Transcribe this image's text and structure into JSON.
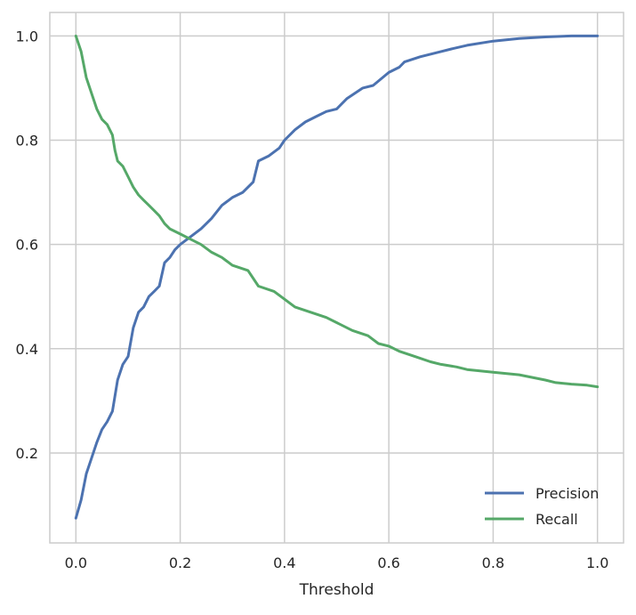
{
  "chart_data": {
    "type": "line",
    "title": "",
    "xlabel": "Threshold",
    "ylabel": "",
    "xlim": [
      -0.05,
      1.05
    ],
    "ylim": [
      0.0275,
      1.045
    ],
    "xticks": [
      0.0,
      0.2,
      0.4,
      0.6,
      0.8,
      1.0
    ],
    "xtick_labels": [
      "0.0",
      "0.2",
      "0.4",
      "0.6",
      "0.8",
      "1.0"
    ],
    "yticks": [
      0.2,
      0.4,
      0.6,
      0.8,
      1.0
    ],
    "ytick_labels": [
      "0.2",
      "0.4",
      "0.6",
      "0.8",
      "1.0"
    ],
    "grid": true,
    "legend_position": "lower-right",
    "colors": {
      "grid": "#cccccc",
      "axes_edge": "#cccccc"
    },
    "series": [
      {
        "name": "Precision",
        "color": "#4c72b0",
        "x": [
          0.0,
          0.01,
          0.02,
          0.03,
          0.04,
          0.05,
          0.06,
          0.07,
          0.08,
          0.09,
          0.1,
          0.11,
          0.12,
          0.13,
          0.14,
          0.15,
          0.16,
          0.17,
          0.18,
          0.19,
          0.2,
          0.22,
          0.24,
          0.26,
          0.28,
          0.3,
          0.32,
          0.34,
          0.35,
          0.37,
          0.39,
          0.4,
          0.42,
          0.44,
          0.46,
          0.48,
          0.5,
          0.52,
          0.55,
          0.57,
          0.6,
          0.62,
          0.63,
          0.66,
          0.7,
          0.72,
          0.75,
          0.8,
          0.85,
          0.9,
          0.95,
          1.0
        ],
        "y": [
          0.075,
          0.11,
          0.16,
          0.19,
          0.22,
          0.245,
          0.26,
          0.28,
          0.34,
          0.37,
          0.385,
          0.44,
          0.47,
          0.48,
          0.5,
          0.51,
          0.52,
          0.565,
          0.575,
          0.59,
          0.6,
          0.615,
          0.63,
          0.65,
          0.675,
          0.69,
          0.7,
          0.72,
          0.76,
          0.77,
          0.785,
          0.8,
          0.82,
          0.835,
          0.845,
          0.855,
          0.86,
          0.88,
          0.9,
          0.905,
          0.93,
          0.94,
          0.95,
          0.96,
          0.97,
          0.975,
          0.982,
          0.99,
          0.995,
          0.998,
          1.0,
          1.0
        ]
      },
      {
        "name": "Recall",
        "color": "#55a868",
        "x": [
          0.0,
          0.01,
          0.02,
          0.03,
          0.04,
          0.05,
          0.06,
          0.07,
          0.075,
          0.08,
          0.09,
          0.1,
          0.11,
          0.12,
          0.13,
          0.14,
          0.15,
          0.16,
          0.17,
          0.18,
          0.2,
          0.22,
          0.24,
          0.26,
          0.28,
          0.3,
          0.33,
          0.35,
          0.38,
          0.4,
          0.42,
          0.45,
          0.48,
          0.5,
          0.53,
          0.56,
          0.58,
          0.6,
          0.62,
          0.65,
          0.68,
          0.7,
          0.73,
          0.75,
          0.8,
          0.85,
          0.9,
          0.92,
          0.95,
          0.98,
          1.0
        ],
        "y": [
          1.0,
          0.97,
          0.92,
          0.89,
          0.86,
          0.84,
          0.83,
          0.81,
          0.78,
          0.76,
          0.75,
          0.73,
          0.71,
          0.695,
          0.685,
          0.675,
          0.665,
          0.655,
          0.64,
          0.63,
          0.62,
          0.61,
          0.6,
          0.585,
          0.575,
          0.56,
          0.55,
          0.52,
          0.51,
          0.495,
          0.48,
          0.47,
          0.46,
          0.45,
          0.435,
          0.425,
          0.41,
          0.405,
          0.395,
          0.385,
          0.375,
          0.37,
          0.365,
          0.36,
          0.355,
          0.35,
          0.34,
          0.335,
          0.332,
          0.33,
          0.327
        ]
      }
    ]
  }
}
